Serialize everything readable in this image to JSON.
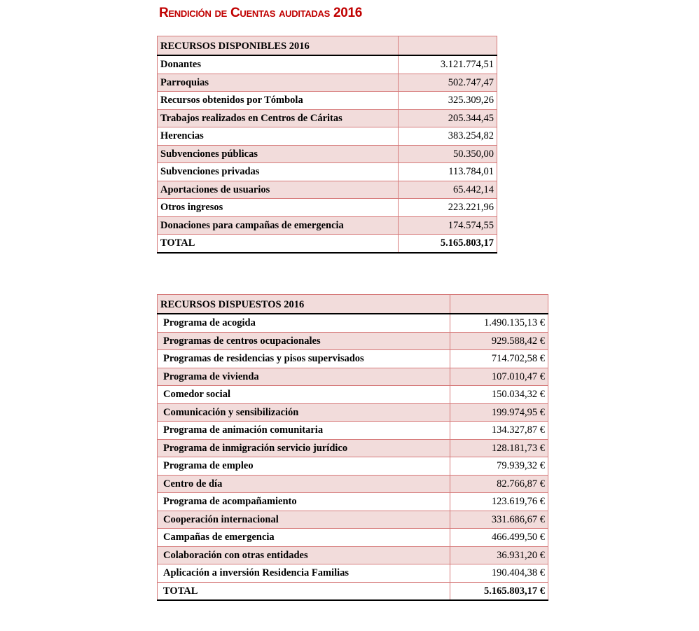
{
  "title": "Rendición de Cuentas auditadas 2016",
  "disponibles": {
    "header": "RECURSOS DISPONIBLES  2016",
    "rows": [
      {
        "label": "Donantes",
        "value": "3.121.774,51"
      },
      {
        "label": "Parroquias",
        "value": "502.747,47"
      },
      {
        "label": "Recursos obtenidos por Tómbola",
        "value": "325.309,26"
      },
      {
        "label": "Trabajos realizados en Centros de Cáritas",
        "value": "205.344,45"
      },
      {
        "label": "Herencias",
        "value": "383.254,82"
      },
      {
        "label": "Subvenciones públicas",
        "value": "50.350,00"
      },
      {
        "label": "Subvenciones privadas",
        "value": "113.784,01"
      },
      {
        "label": "Aportaciones de usuarios",
        "value": "65.442,14"
      },
      {
        "label": "Otros ingresos",
        "value": "223.221,96"
      },
      {
        "label": "Donaciones para campañas de emergencia",
        "value": "174.574,55"
      }
    ],
    "total": {
      "label": "TOTAL",
      "value": "5.165.803,17"
    }
  },
  "dispuestos": {
    "header": "RECURSOS DISPUESTOS 2016",
    "rows": [
      {
        "label": "Programa de acogida",
        "value": "1.490.135,13 €"
      },
      {
        "label": "Programas de centros ocupacionales",
        "value": "929.588,42 €"
      },
      {
        "label": "Programas de residencias y pisos supervisados",
        "value": "714.702,58 €"
      },
      {
        "label": "Programa de vivienda",
        "value": "107.010,47 €"
      },
      {
        "label": "Comedor social",
        "value": "150.034,32 €"
      },
      {
        "label": "Comunicación y sensibilización",
        "value": "199.974,95 €"
      },
      {
        "label": "Programa de animación comunitaria",
        "value": "134.327,87 €"
      },
      {
        "label": "Programa de inmigración servicio jurídico",
        "value": "128.181,73 €"
      },
      {
        "label": "Programa de empleo",
        "value": "79.939,32 €"
      },
      {
        "label": "Centro de día",
        "value": "82.766,87 €"
      },
      {
        "label": "Programa de acompañamiento",
        "value": "123.619,76 €"
      },
      {
        "label": "Cooperación internacional",
        "value": "331.686,67 €"
      },
      {
        "label": "Campañas de emergencia",
        "value": "466.499,50 €"
      },
      {
        "label": "Colaboración con otras entidades",
        "value": "36.931,20 €"
      },
      {
        "label": "Aplicación a inversión Residencia Familias",
        "value": "190.404,38 €"
      }
    ],
    "total": {
      "label": "TOTAL",
      "value": "5.165.803,17 €"
    }
  }
}
